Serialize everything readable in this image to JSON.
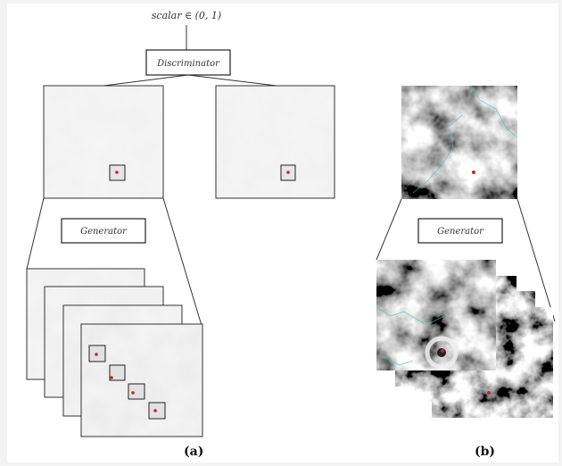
{
  "top_label": "scalar ∈ (0, 1)",
  "discriminator_label": "Discriminator",
  "generator_label_a": "Generator",
  "generator_label_b": "Generator",
  "panel_a_label": "(a)",
  "panel_b_label": "(b)",
  "colors": {
    "line": "#333333",
    "marker": "#d21f1f",
    "coastline": "#2ec6c6",
    "paper": "#ffffff",
    "frame": "#f3f3f3"
  }
}
